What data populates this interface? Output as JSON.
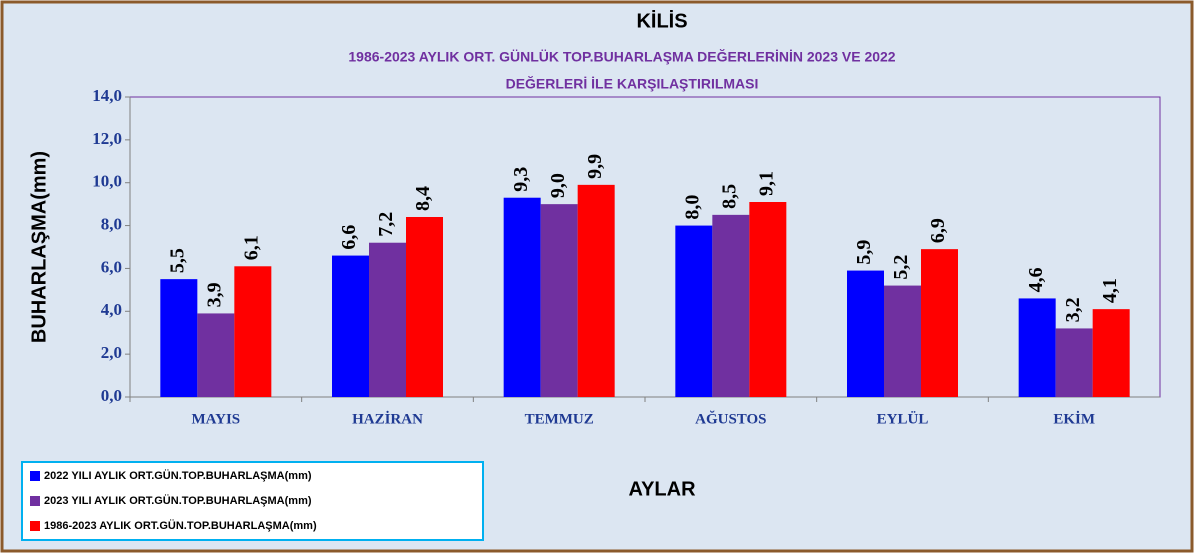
{
  "chart_data": {
    "type": "bar",
    "title": "KİLİS",
    "subtitle": [
      "1986-2023   AYLIK ORT. GÜNLÜK TOP.BUHARLAŞMA DEĞERLERİNİN  2023 VE 2022",
      "DEĞERLERİ  İLE KARŞILAŞTIRILMASI"
    ],
    "y_label": "BUHARLAŞMA(mm)",
    "x_label": "AYLAR",
    "categories": [
      "MAYIS",
      "HAZİRAN",
      "TEMMUZ",
      "AĞUSTOS",
      "EYLÜL",
      "EKİM"
    ],
    "series": [
      {
        "name": "2022 YILI AYLIK ORT.GÜN.TOP.BUHARLAŞMA(mm)",
        "color": "#0000ff",
        "values": [
          5.5,
          6.6,
          9.3,
          8.0,
          5.9,
          4.6
        ],
        "value_labels": [
          "5,5",
          "6,6",
          "9,3",
          "8,0",
          "5,9",
          "4,6"
        ]
      },
      {
        "name": "2023 YILI AYLIK ORT.GÜN.TOP.BUHARLAŞMA(mm)",
        "color": "#7030a0",
        "values": [
          3.9,
          7.2,
          9.0,
          8.5,
          5.2,
          3.2
        ],
        "value_labels": [
          "3,9",
          "7,2",
          "9,0",
          "8,5",
          "5,2",
          "3,2"
        ]
      },
      {
        "name": "1986-2023  AYLIK ORT.GÜN.TOP.BUHARLAŞMA(mm)",
        "color": "#ff0000",
        "values": [
          6.1,
          8.4,
          9.9,
          9.1,
          6.9,
          4.1
        ],
        "value_labels": [
          "6,1",
          "8,4",
          "9,9",
          "9,1",
          "6,9",
          "4,1"
        ]
      }
    ],
    "ylim": [
      0,
      14
    ],
    "yticks": [
      {
        "value": 0,
        "label": "0,0"
      },
      {
        "value": 2,
        "label": "2,0"
      },
      {
        "value": 4,
        "label": "4,0"
      },
      {
        "value": 6,
        "label": "6,0"
      },
      {
        "value": 8,
        "label": "8,0"
      },
      {
        "value": 10,
        "label": "10,0"
      },
      {
        "value": 12,
        "label": "12,0"
      },
      {
        "value": 14,
        "label": "14,0"
      }
    ],
    "legend": "bottom-left"
  }
}
